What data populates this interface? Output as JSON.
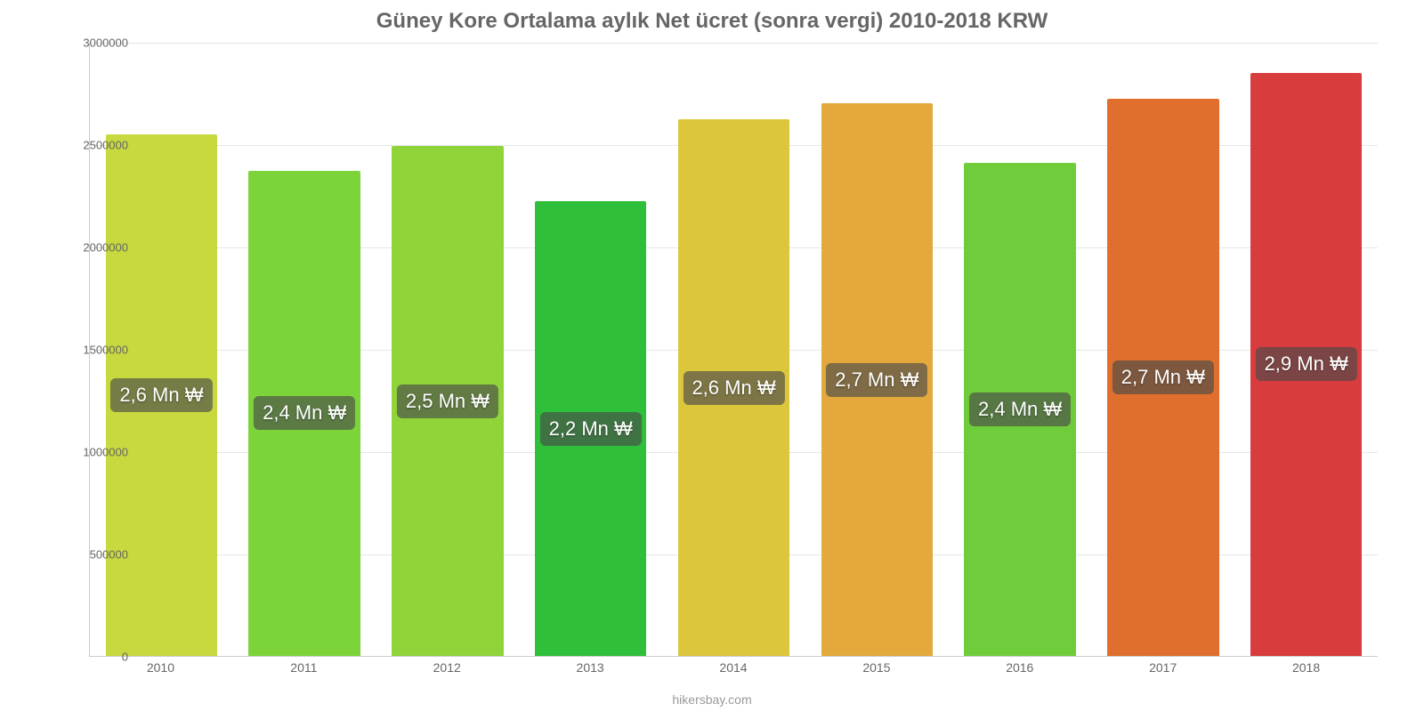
{
  "chart": {
    "type": "bar",
    "title": "Güney Kore Ortalama aylık Net ücret (sonra vergi) 2010-2018 KRW",
    "title_color": "#666666",
    "title_fontsize": 24,
    "title_fontweight": "700",
    "credit": "hikersbay.com",
    "credit_color": "#999999",
    "credit_fontsize": 14,
    "background_color": "#ffffff",
    "axis_color": "#cccccc",
    "grid_color": "#e6e6e6",
    "tick_color": "#666666",
    "tick_fontsize": 13,
    "ylim": [
      0,
      3000000
    ],
    "ytick_step": 500000,
    "yticks": [
      "0",
      "500000",
      "1000000",
      "1500000",
      "2000000",
      "2500000",
      "3000000"
    ],
    "categories": [
      "2010",
      "2011",
      "2012",
      "2013",
      "2014",
      "2015",
      "2016",
      "2017",
      "2018"
    ],
    "values": [
      2550000,
      2370000,
      2490000,
      2220000,
      2620000,
      2700000,
      2410000,
      2720000,
      2850000
    ],
    "value_labels": [
      "2,6 Mn ₩",
      "2,4 Mn ₩",
      "2,5 Mn ₩",
      "2,2 Mn ₩",
      "2,6 Mn ₩",
      "2,7 Mn ₩",
      "2,4 Mn ₩",
      "2,7 Mn ₩",
      "2,9 Mn ₩"
    ],
    "bar_colors": [
      "#c7d93e",
      "#7dd43a",
      "#91d43a",
      "#2fbf3a",
      "#dcc73c",
      "#e3a93c",
      "#6fcc3a",
      "#e06f2d",
      "#d93c3c"
    ],
    "bar_width_pct": 78,
    "value_label_bg": "rgba(74,74,74,0.65)",
    "value_label_color": "#ffffff",
    "value_label_fontsize": 22,
    "xlabel_color": "#666666",
    "xlabel_fontsize": 14
  }
}
